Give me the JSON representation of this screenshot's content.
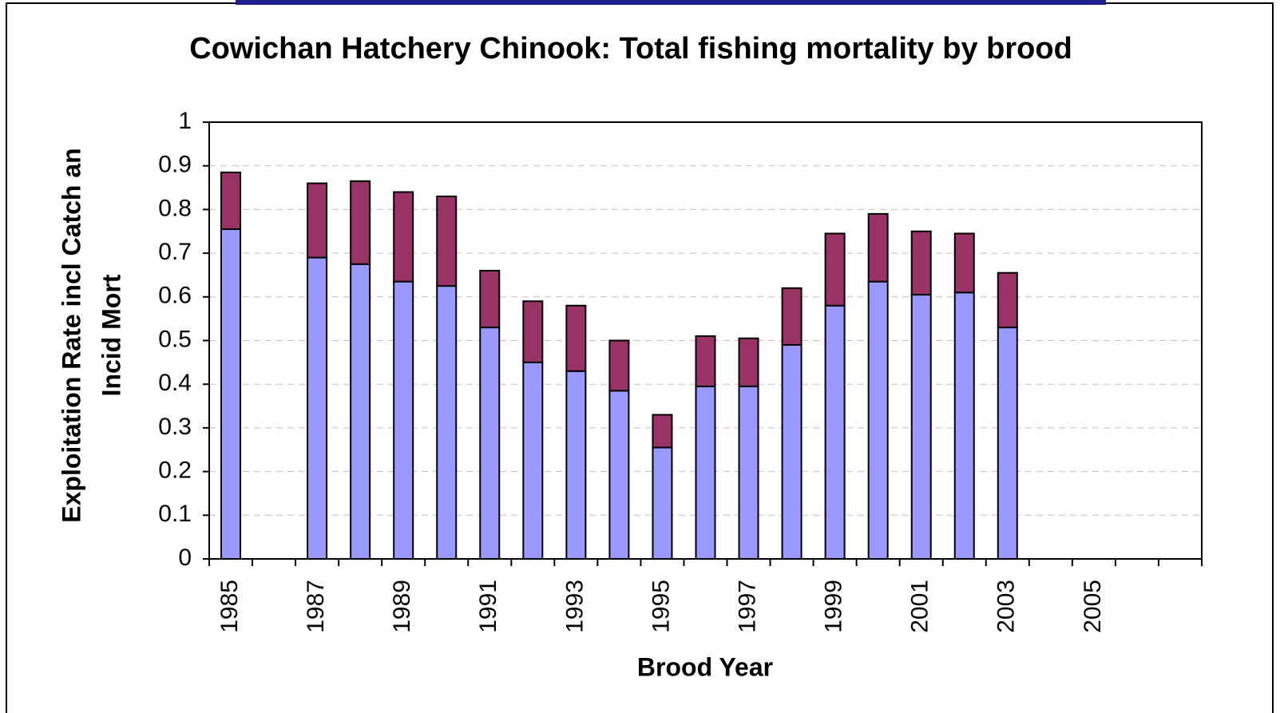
{
  "chart_data": {
    "type": "stacked-bar",
    "title": "Cowichan Hatchery Chinook: Total fishing mortality by brood",
    "x_label": "Brood Year",
    "y_label": [
      "Exploitation Rate incl Catch an",
      "Incid Mort"
    ],
    "categories": [
      "1985",
      null,
      "1987",
      null,
      "1989",
      null,
      "1991",
      null,
      "1993",
      null,
      "1995",
      null,
      "1997",
      null,
      "1999",
      null,
      "2001",
      null,
      "2003",
      null,
      "2005",
      null,
      null
    ],
    "series": [
      {
        "color": "#9999ff",
        "values": [
          0.755,
          null,
          0.69,
          0.675,
          0.635,
          0.625,
          0.53,
          0.45,
          0.43,
          0.385,
          0.255,
          0.395,
          0.395,
          0.49,
          0.58,
          0.635,
          0.605,
          0.61,
          0.53,
          null,
          null,
          null,
          null
        ]
      },
      {
        "color": "#993366",
        "values": [
          0.13,
          null,
          0.17,
          0.19,
          0.205,
          0.205,
          0.13,
          0.14,
          0.15,
          0.115,
          0.075,
          0.115,
          0.11,
          0.13,
          0.165,
          0.155,
          0.145,
          0.135,
          0.125,
          null,
          null,
          null,
          null
        ]
      }
    ],
    "ylim": [
      0,
      1
    ],
    "yticks": [
      0,
      0.1,
      0.2,
      0.3,
      0.4,
      0.5,
      0.6,
      0.7,
      0.8,
      0.9,
      1
    ],
    "grid": true
  }
}
